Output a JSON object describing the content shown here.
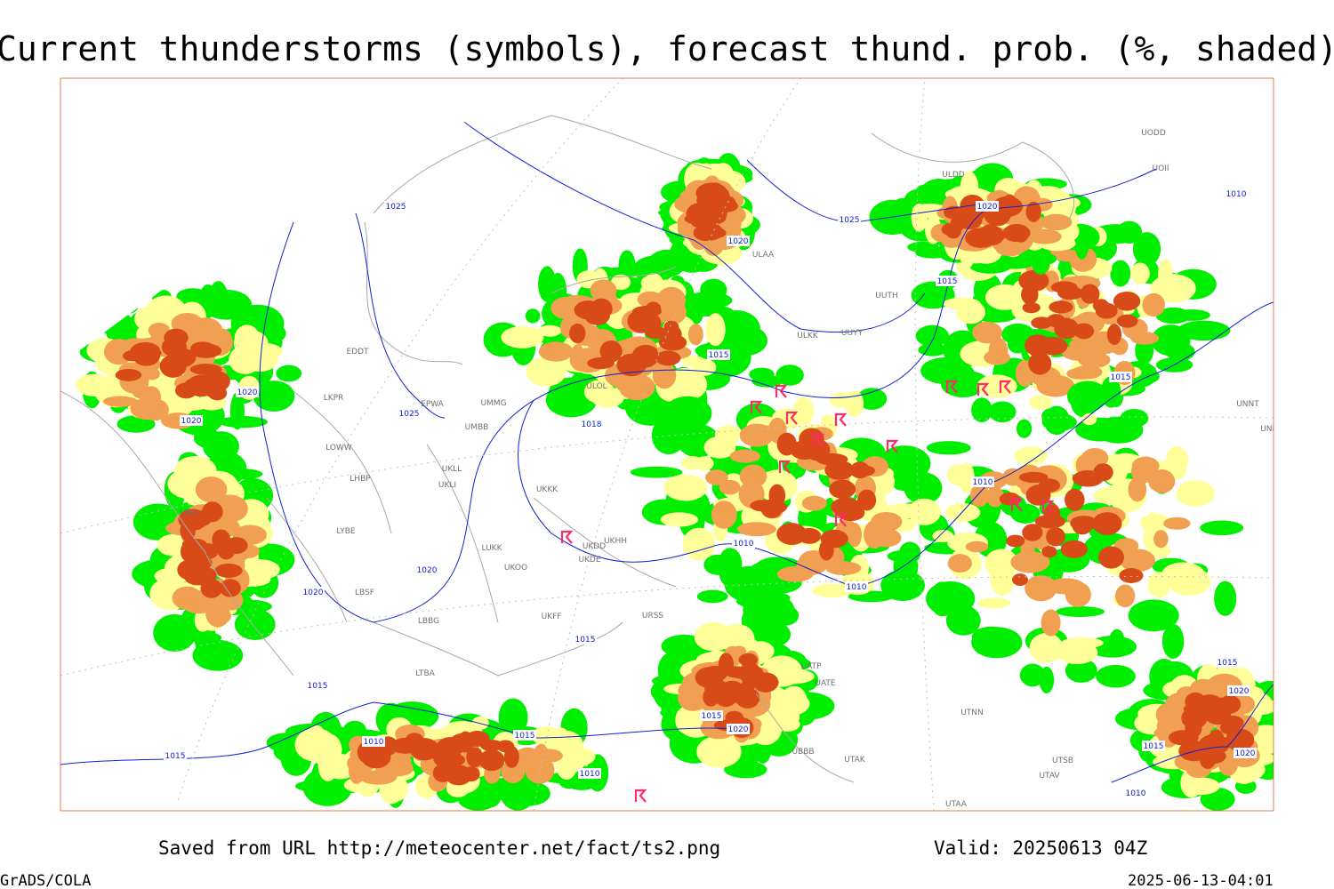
{
  "title": "Current thunderstorms (symbols), forecast thund. prob. (%, shaded)",
  "source": "Saved from URL http://meteocenter.net/fact/ts2.png",
  "valid": "Valid: 20250613 04Z",
  "credit": "GrADS/COLA",
  "timestamp": "2025-06-13-04:01",
  "isobar_labels": [
    "1025",
    "1020",
    "1025",
    "1020",
    "1010",
    "1015",
    "1015",
    "1020",
    "1020",
    "1025",
    "1018",
    "1015",
    "1010",
    "1010",
    "1010",
    "1020",
    "1020",
    "1015",
    "1015",
    "1015",
    "1020",
    "1015",
    "1020",
    "1015",
    "1010",
    "1015",
    "1010",
    "1015",
    "1020",
    "1010"
  ],
  "stations": [
    "ULAA",
    "UUYY",
    "ULKK",
    "UUTH",
    "ULDD",
    "UODD",
    "UOII",
    "UNNT",
    "UNBB",
    "LKPR",
    "LOWW",
    "LHBP",
    "LIRA",
    "LYBE",
    "LBSF",
    "LBBG",
    "LTBA",
    "UKLL",
    "UKLI",
    "UMBB",
    "UMMG",
    "EPWA",
    "EDDT",
    "ULOL",
    "UKKK",
    "LUKK",
    "UKOO",
    "UKDD",
    "UKDE",
    "UKHH",
    "UKFF",
    "URSS",
    "UATP",
    "UATE",
    "UBBB",
    "UTAK",
    "UTNN",
    "UTAA",
    "UTAV",
    "UTSB"
  ]
}
